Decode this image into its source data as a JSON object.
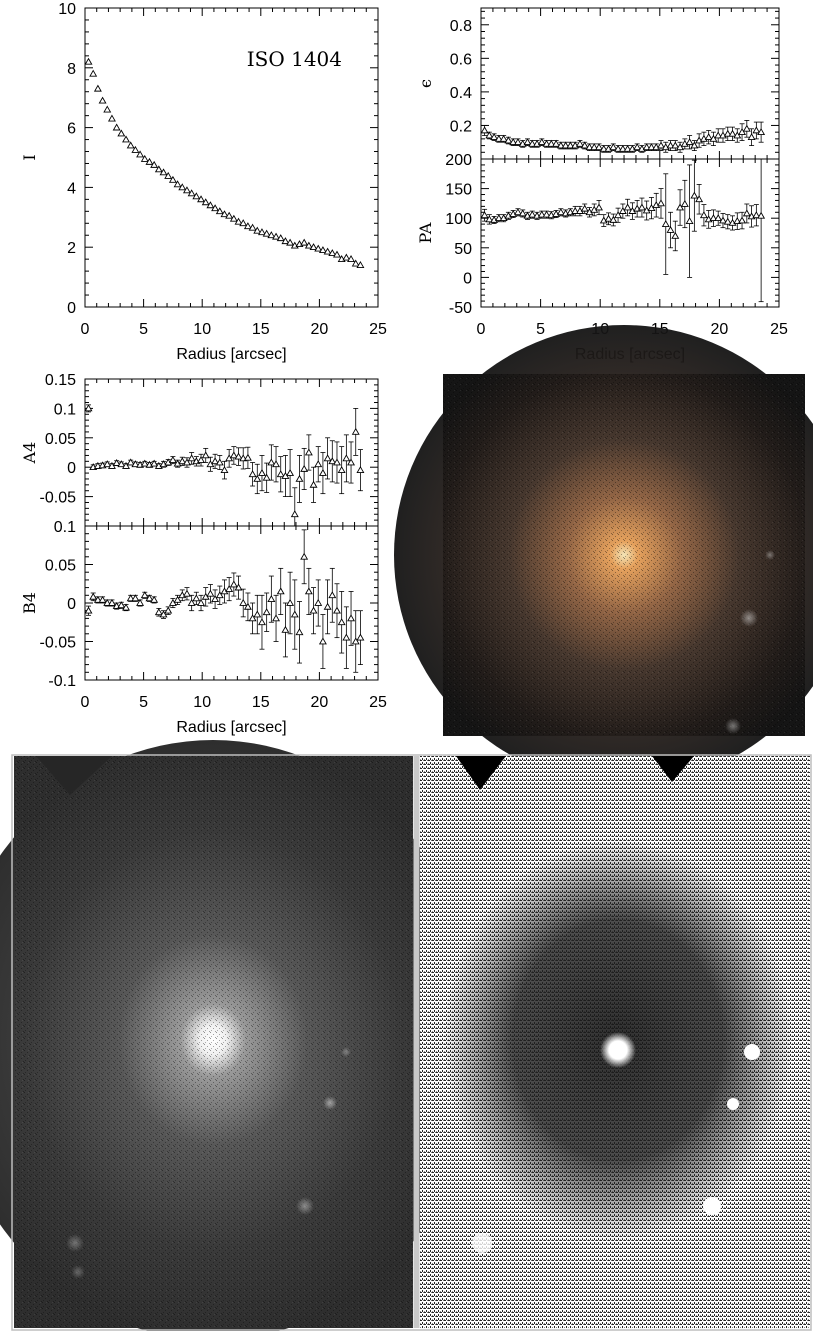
{
  "chart_data": [
    {
      "type": "scatter",
      "title": "ISO 1404",
      "xlabel": "Radius [arcsec]",
      "ylabel": "I",
      "xlim": [
        0,
        25
      ],
      "ylim": [
        0,
        10
      ],
      "xticks": [
        0,
        5,
        10,
        15,
        20,
        25
      ],
      "yticks": [
        0,
        2,
        4,
        6,
        8,
        10
      ],
      "series": [
        {
          "marker": "triangle",
          "x": [
            0.3,
            0.7,
            1.1,
            1.5,
            1.9,
            2.3,
            2.7,
            3.1,
            3.5,
            3.9,
            4.3,
            4.7,
            5.1,
            5.5,
            5.9,
            6.3,
            6.7,
            7.1,
            7.5,
            7.9,
            8.3,
            8.7,
            9.1,
            9.5,
            9.9,
            10.3,
            10.7,
            11.1,
            11.5,
            11.9,
            12.3,
            12.7,
            13.1,
            13.5,
            13.9,
            14.3,
            14.7,
            15.1,
            15.5,
            15.9,
            16.3,
            16.7,
            17.1,
            17.5,
            17.9,
            18.3,
            18.7,
            19.1,
            19.5,
            19.9,
            20.3,
            20.7,
            21.1,
            21.5,
            21.9,
            22.3,
            22.7,
            23.1,
            23.5
          ],
          "y": [
            8.2,
            7.8,
            7.3,
            6.9,
            6.6,
            6.3,
            6.0,
            5.8,
            5.6,
            5.4,
            5.25,
            5.1,
            4.95,
            4.85,
            4.75,
            4.6,
            4.5,
            4.38,
            4.25,
            4.1,
            4.0,
            3.9,
            3.8,
            3.7,
            3.6,
            3.5,
            3.4,
            3.3,
            3.2,
            3.1,
            3.05,
            2.95,
            2.85,
            2.8,
            2.7,
            2.65,
            2.55,
            2.5,
            2.45,
            2.4,
            2.35,
            2.3,
            2.2,
            2.15,
            2.05,
            2.1,
            2.15,
            2.05,
            2.0,
            1.95,
            1.9,
            1.85,
            1.8,
            1.75,
            1.6,
            1.65,
            1.6,
            1.45,
            1.4
          ]
        }
      ]
    },
    {
      "type": "scatter",
      "ylabel": "ϵ",
      "xlim": [
        0,
        25
      ],
      "ylim": [
        0,
        0.9
      ],
      "yticks": [
        0.2,
        0.4,
        0.6,
        0.8
      ],
      "yticklabels": [
        "0.2",
        "0.4",
        "0.6",
        "0.8"
      ],
      "series": [
        {
          "marker": "triangle",
          "error_bars": true,
          "x": [
            0.3,
            0.7,
            1.1,
            1.5,
            1.9,
            2.3,
            2.7,
            3.1,
            3.5,
            3.9,
            4.3,
            4.7,
            5.1,
            5.5,
            5.9,
            6.3,
            6.7,
            7.1,
            7.5,
            7.9,
            8.3,
            8.7,
            9.1,
            9.5,
            9.9,
            10.3,
            10.7,
            11.1,
            11.5,
            11.9,
            12.3,
            12.7,
            13.1,
            13.5,
            13.9,
            14.3,
            14.7,
            15.1,
            15.5,
            15.9,
            16.3,
            16.7,
            17.1,
            17.5,
            17.9,
            18.3,
            18.7,
            19.1,
            19.5,
            19.9,
            20.3,
            20.7,
            21.1,
            21.5,
            21.9,
            22.3,
            22.7,
            23.1,
            23.5
          ],
          "y": [
            0.17,
            0.14,
            0.13,
            0.12,
            0.12,
            0.11,
            0.1,
            0.1,
            0.09,
            0.1,
            0.09,
            0.09,
            0.1,
            0.09,
            0.09,
            0.09,
            0.08,
            0.08,
            0.08,
            0.08,
            0.09,
            0.08,
            0.07,
            0.07,
            0.07,
            0.06,
            0.06,
            0.07,
            0.06,
            0.06,
            0.06,
            0.06,
            0.07,
            0.06,
            0.07,
            0.07,
            0.07,
            0.08,
            0.07,
            0.08,
            0.08,
            0.07,
            0.09,
            0.1,
            0.08,
            0.11,
            0.12,
            0.13,
            0.12,
            0.14,
            0.14,
            0.15,
            0.15,
            0.14,
            0.16,
            0.18,
            0.13,
            0.17,
            0.16
          ],
          "err": [
            0.03,
            0.02,
            0.02,
            0.02,
            0.02,
            0.02,
            0.02,
            0.02,
            0.02,
            0.02,
            0.02,
            0.02,
            0.02,
            0.02,
            0.02,
            0.02,
            0.02,
            0.02,
            0.02,
            0.02,
            0.02,
            0.02,
            0.02,
            0.02,
            0.02,
            0.02,
            0.02,
            0.02,
            0.02,
            0.02,
            0.02,
            0.02,
            0.02,
            0.02,
            0.02,
            0.02,
            0.02,
            0.03,
            0.03,
            0.03,
            0.03,
            0.03,
            0.03,
            0.04,
            0.03,
            0.04,
            0.04,
            0.04,
            0.04,
            0.04,
            0.04,
            0.04,
            0.04,
            0.04,
            0.05,
            0.05,
            0.05,
            0.05,
            0.06
          ]
        }
      ]
    },
    {
      "type": "scatter",
      "xlabel": "Radius [arcsec]",
      "ylabel": "PA",
      "xlim": [
        0,
        25
      ],
      "ylim": [
        -50,
        200
      ],
      "xticks": [
        0,
        5,
        10,
        15,
        20,
        25
      ],
      "yticks": [
        -50,
        0,
        50,
        100,
        150,
        200
      ],
      "series": [
        {
          "marker": "triangle",
          "error_bars": true,
          "x": [
            0.3,
            0.7,
            1.1,
            1.5,
            1.9,
            2.3,
            2.7,
            3.1,
            3.5,
            3.9,
            4.3,
            4.7,
            5.1,
            5.5,
            5.9,
            6.3,
            6.7,
            7.1,
            7.5,
            7.9,
            8.3,
            8.7,
            9.1,
            9.5,
            9.9,
            10.3,
            10.7,
            11.1,
            11.5,
            11.9,
            12.3,
            12.7,
            13.1,
            13.5,
            13.9,
            14.3,
            14.7,
            15.1,
            15.5,
            15.9,
            16.3,
            16.7,
            17.1,
            17.5,
            17.9,
            18.3,
            18.7,
            19.1,
            19.5,
            19.9,
            20.3,
            20.7,
            21.1,
            21.5,
            21.9,
            22.3,
            22.7,
            23.1,
            23.5
          ],
          "y": [
            105,
            98,
            97,
            100,
            100,
            104,
            107,
            110,
            108,
            104,
            106,
            104,
            106,
            106,
            105,
            107,
            110,
            108,
            110,
            112,
            112,
            116,
            110,
            114,
            118,
            96,
            99,
            97,
            105,
            112,
            118,
            112,
            116,
            118,
            113,
            117,
            122,
            125,
            90,
            80,
            70,
            118,
            124,
            95,
            138,
            132,
            105,
            98,
            100,
            100,
            96,
            94,
            92,
            95,
            96,
            108,
            103,
            105,
            104
          ],
          "err": [
            10,
            8,
            6,
            6,
            6,
            6,
            6,
            6,
            6,
            6,
            6,
            6,
            6,
            6,
            6,
            6,
            6,
            6,
            6,
            8,
            8,
            8,
            8,
            10,
            12,
            10,
            10,
            10,
            12,
            12,
            14,
            14,
            14,
            16,
            16,
            18,
            20,
            25,
            85,
            30,
            25,
            30,
            40,
            95,
            60,
            25,
            18,
            15,
            14,
            12,
            12,
            12,
            12,
            14,
            14,
            16,
            18,
            18,
            145
          ]
        }
      ]
    },
    {
      "type": "scatter",
      "ylabel": "A4",
      "xlim": [
        0,
        25
      ],
      "ylim": [
        -0.1,
        0.15
      ],
      "yticks": [
        -0.05,
        0,
        0.05,
        0.1,
        0.15
      ],
      "yticklabels": [
        "-0.05",
        "0",
        "0.05",
        "0.1",
        "0.15"
      ],
      "series": [
        {
          "marker": "triangle",
          "error_bars": true,
          "x": [
            0.3,
            0.7,
            1.1,
            1.5,
            1.9,
            2.3,
            2.7,
            3.1,
            3.5,
            3.9,
            4.3,
            4.7,
            5.1,
            5.5,
            5.9,
            6.3,
            6.7,
            7.1,
            7.5,
            7.9,
            8.3,
            8.7,
            9.1,
            9.5,
            9.9,
            10.3,
            10.7,
            11.1,
            11.5,
            11.9,
            12.3,
            12.7,
            13.1,
            13.5,
            13.9,
            14.3,
            14.7,
            15.1,
            15.5,
            15.9,
            16.3,
            16.7,
            17.1,
            17.5,
            17.9,
            18.3,
            18.7,
            19.1,
            19.5,
            19.9,
            20.3,
            20.7,
            21.1,
            21.5,
            21.9,
            22.3,
            22.7,
            23.1,
            23.5
          ],
          "y": [
            0.1,
            0.0,
            0.002,
            0.003,
            0.005,
            0.002,
            0.007,
            0.005,
            0.002,
            0.008,
            0.005,
            0.004,
            0.006,
            0.004,
            0.006,
            0.002,
            0.005,
            0.008,
            0.012,
            0.006,
            0.01,
            0.008,
            0.015,
            0.01,
            0.012,
            0.02,
            0.005,
            0.01,
            0.008,
            -0.005,
            0.015,
            0.02,
            0.018,
            0.015,
            0.016,
            -0.012,
            -0.02,
            -0.01,
            -0.018,
            0.008,
            0.005,
            -0.012,
            -0.015,
            -0.01,
            -0.08,
            -0.02,
            -0.003,
            0.025,
            -0.03,
            0.005,
            -0.01,
            0.015,
            0.01,
            0.008,
            -0.005,
            0.015,
            0.008,
            0.06,
            -0.005
          ],
          "err": [
            0.006,
            0.004,
            0.004,
            0.004,
            0.004,
            0.004,
            0.004,
            0.004,
            0.004,
            0.004,
            0.004,
            0.004,
            0.004,
            0.004,
            0.004,
            0.004,
            0.005,
            0.005,
            0.006,
            0.006,
            0.007,
            0.008,
            0.01,
            0.008,
            0.01,
            0.012,
            0.012,
            0.012,
            0.012,
            0.015,
            0.015,
            0.015,
            0.015,
            0.018,
            0.018,
            0.02,
            0.025,
            0.03,
            0.025,
            0.03,
            0.03,
            0.03,
            0.035,
            0.04,
            0.045,
            0.04,
            0.035,
            0.03,
            0.03,
            0.03,
            0.035,
            0.035,
            0.035,
            0.035,
            0.04,
            0.04,
            0.035,
            0.04,
            0.035
          ]
        }
      ]
    },
    {
      "type": "scatter",
      "xlabel": "Radius [arcsec]",
      "ylabel": "B4",
      "xlim": [
        0,
        25
      ],
      "ylim": [
        -0.1,
        0.1
      ],
      "xticks": [
        0,
        5,
        10,
        15,
        20,
        25
      ],
      "yticks": [
        -0.1,
        -0.05,
        0,
        0.05,
        0.1
      ],
      "yticklabels": [
        "-0.1",
        "-0.05",
        "0",
        "0.05",
        "0.1"
      ],
      "series": [
        {
          "marker": "triangle",
          "error_bars": true,
          "x": [
            0.3,
            0.7,
            1.1,
            1.5,
            1.9,
            2.3,
            2.7,
            3.1,
            3.5,
            3.9,
            4.3,
            4.7,
            5.1,
            5.5,
            5.9,
            6.3,
            6.7,
            7.1,
            7.5,
            7.9,
            8.3,
            8.7,
            9.1,
            9.5,
            9.9,
            10.3,
            10.7,
            11.1,
            11.5,
            11.9,
            12.3,
            12.7,
            13.1,
            13.5,
            13.9,
            14.3,
            14.7,
            15.1,
            15.5,
            15.9,
            16.3,
            16.7,
            17.1,
            17.5,
            17.9,
            18.3,
            18.7,
            19.1,
            19.5,
            19.9,
            20.3,
            20.7,
            21.1,
            21.5,
            21.9,
            22.3,
            22.7,
            23.1,
            23.5
          ],
          "y": [
            -0.01,
            0.008,
            0.004,
            0.004,
            0.0,
            0.0,
            -0.004,
            -0.003,
            -0.006,
            0.006,
            0.006,
            0.0,
            0.01,
            0.006,
            0.004,
            -0.012,
            -0.015,
            -0.01,
            0.0,
            0.004,
            0.01,
            0.012,
            0.0,
            0.006,
            0.0,
            0.008,
            0.012,
            0.005,
            0.01,
            0.015,
            0.018,
            0.024,
            0.02,
            0.0,
            -0.005,
            -0.02,
            -0.015,
            -0.025,
            -0.012,
            0.005,
            -0.02,
            0.015,
            -0.035,
            0.0,
            -0.015,
            -0.038,
            0.06,
            0.015,
            -0.01,
            0.0,
            -0.05,
            -0.005,
            0.01,
            -0.01,
            -0.025,
            -0.045,
            -0.02,
            -0.05,
            -0.045
          ],
          "err": [
            0.006,
            0.005,
            0.004,
            0.004,
            0.004,
            0.004,
            0.004,
            0.004,
            0.004,
            0.004,
            0.004,
            0.004,
            0.004,
            0.004,
            0.004,
            0.005,
            0.005,
            0.005,
            0.006,
            0.006,
            0.007,
            0.008,
            0.01,
            0.008,
            0.01,
            0.012,
            0.012,
            0.012,
            0.012,
            0.015,
            0.015,
            0.015,
            0.015,
            0.018,
            0.018,
            0.02,
            0.025,
            0.035,
            0.025,
            0.03,
            0.03,
            0.03,
            0.035,
            0.04,
            0.045,
            0.04,
            0.035,
            0.03,
            0.03,
            0.03,
            0.035,
            0.035,
            0.035,
            0.035,
            0.04,
            0.04,
            0.035,
            0.04,
            0.035
          ]
        }
      ]
    }
  ],
  "colors": {
    "frame": "#000000",
    "background": "#ffffff"
  }
}
